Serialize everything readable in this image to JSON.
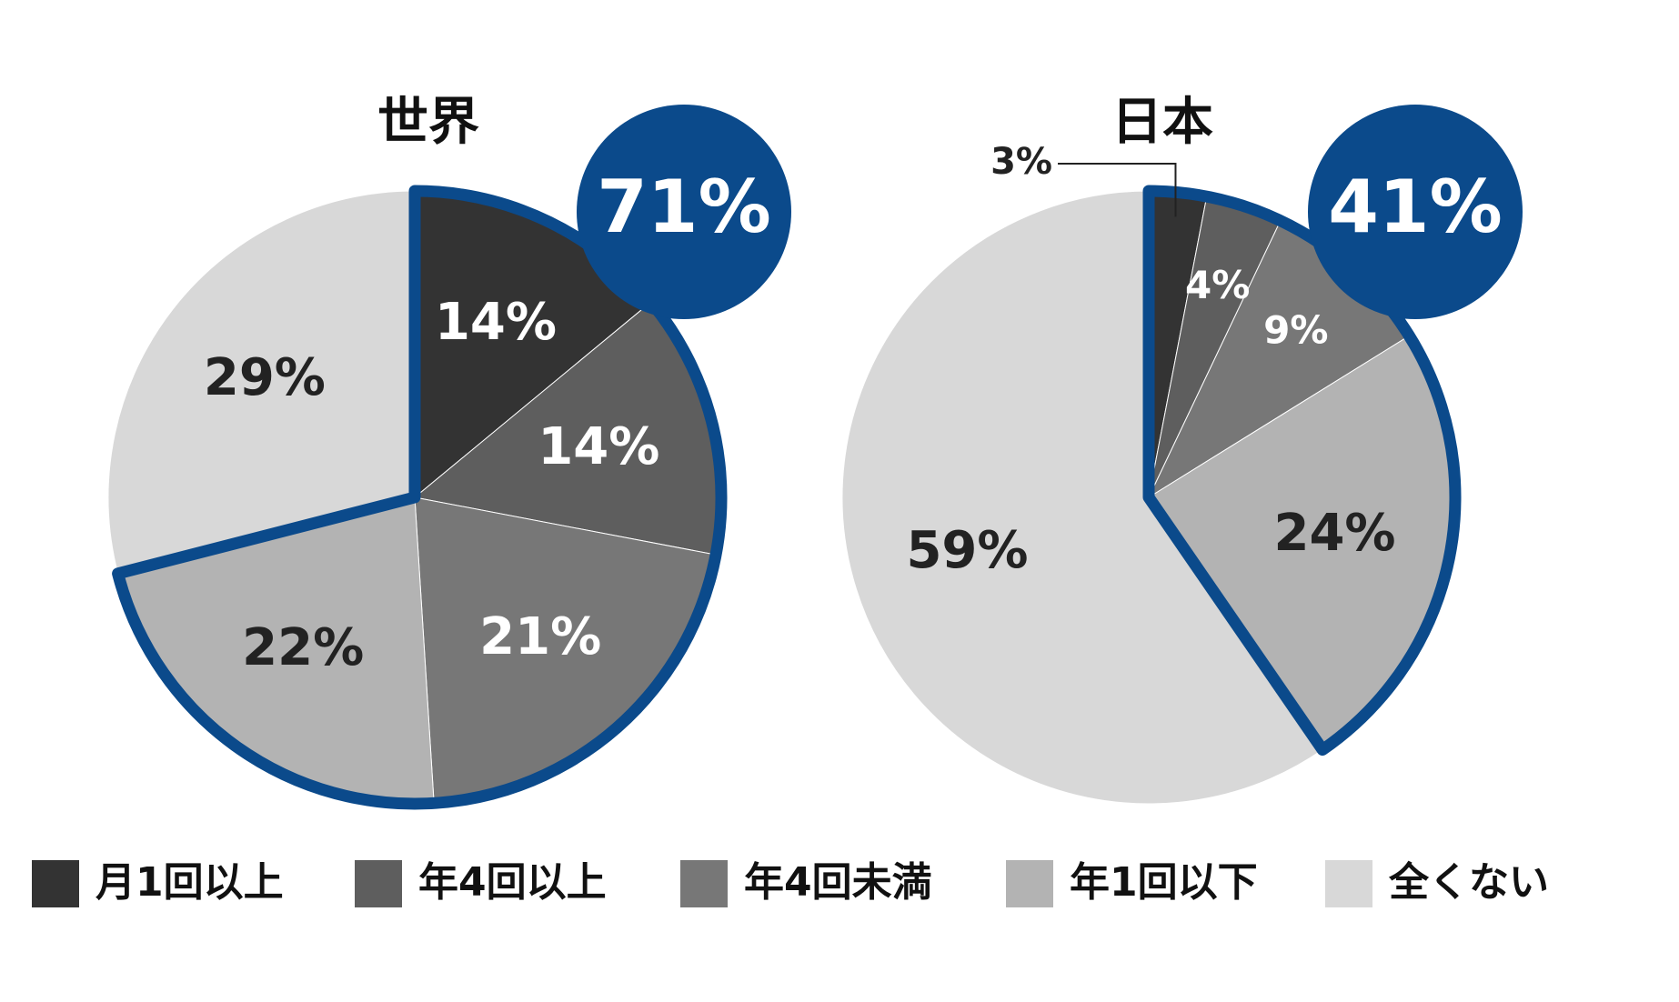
{
  "chart_data": [
    {
      "type": "pie",
      "title": "世界",
      "categories": [
        "月1回以上",
        "年4回以上",
        "年4回未満",
        "年1回以下",
        "全くない"
      ],
      "values": [
        14,
        14,
        21,
        22,
        29
      ],
      "value_labels": [
        "14%",
        "14%",
        "21%",
        "22%",
        "29%"
      ],
      "colors": [
        "#333333",
        "#5e5e5e",
        "#777777",
        "#b3b3b3",
        "#d8d8d8"
      ],
      "annotation": "71%",
      "highlight_color": "#0b4a8b",
      "legend": "bottom"
    },
    {
      "type": "pie",
      "title": "日本",
      "categories": [
        "月1回以上",
        "年4回以上",
        "年4回未満",
        "年1回以下",
        "全くない"
      ],
      "values": [
        3,
        4,
        9,
        24,
        59
      ],
      "value_labels": [
        "3%",
        "4%",
        "9%",
        "24%",
        "59%"
      ],
      "colors": [
        "#333333",
        "#5e5e5e",
        "#777777",
        "#b3b3b3",
        "#d8d8d8"
      ],
      "annotation": "41%",
      "highlight_color": "#0b4a8b"
    }
  ]
}
